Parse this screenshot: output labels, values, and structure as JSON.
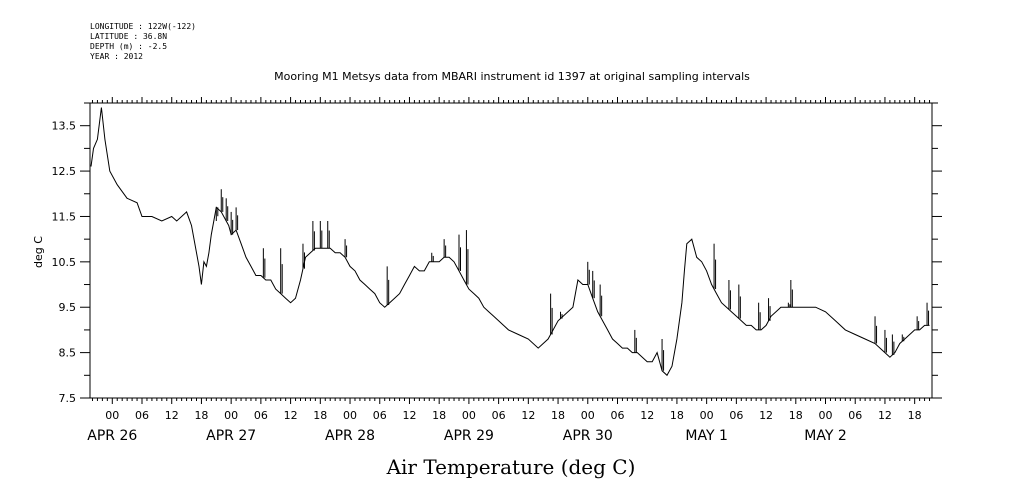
{
  "header": {
    "longitude": "LONGITUDE : 122W(-122)",
    "latitude": "LATITUDE : 36.8N",
    "depth": "DEPTH (m) : -2.5",
    "year": "YEAR : 2012"
  },
  "chart_data": {
    "type": "line",
    "title": "Mooring M1 Metsys data from MBARI instrument id 1397 at original sampling intervals",
    "xlabel": "Air Temperature (deg C)",
    "ylabel": "deg C",
    "ylim": [
      7.5,
      14.0
    ],
    "xlim_hours": [
      -4.5,
      165.5
    ],
    "ytick_labels": [
      "7.5",
      "8.5",
      "9.5",
      "10.5",
      "11.5",
      "12.5",
      "13.5"
    ],
    "xtick_hour_labels": [
      "00",
      "06",
      "12",
      "18",
      "00",
      "06",
      "12",
      "18",
      "00",
      "06",
      "12",
      "18",
      "00",
      "06",
      "12",
      "18",
      "00",
      "06",
      "12",
      "18",
      "00",
      "06",
      "12",
      "18",
      "00",
      "06",
      "12",
      "18"
    ],
    "day_labels": [
      "APR 26",
      "APR 27",
      "APR 28",
      "APR 29",
      "APR 30",
      "MAY  1",
      "MAY  2"
    ],
    "x_units": "hours since 2012-04-26 00:00",
    "series": [
      {
        "name": "",
        "x": [
          -4.3,
          -3.8,
          -3.0,
          -2.2,
          -1.5,
          -0.5,
          1.0,
          3.0,
          5.0,
          6.0,
          8.0,
          10.0,
          12.0,
          13.0,
          14.0,
          15.0,
          16.0,
          17.5,
          18.0,
          18.5,
          19.0,
          19.5,
          20.0,
          20.5,
          21.0,
          22.0,
          23.0,
          23.5,
          24.0,
          25.0,
          26.0,
          27.0,
          28.0,
          29.0,
          30.0,
          31.0,
          32.0,
          33.0,
          34.0,
          35.0,
          36.0,
          37.0,
          38.0,
          39.0,
          40.0,
          41.0,
          42.0,
          43.0,
          44.0,
          45.0,
          46.0,
          47.0,
          48.0,
          49.0,
          50.0,
          51.0,
          52.0,
          53.0,
          54.0,
          55.0,
          56.0,
          57.0,
          58.0,
          59.0,
          60.0,
          61.0,
          62.0,
          63.0,
          64.0,
          65.0,
          66.0,
          67.0,
          68.0,
          69.0,
          70.0,
          71.0,
          72.0,
          73.0,
          74.0,
          75.0,
          76.0,
          77.0,
          78.0,
          79.0,
          80.0,
          82.0,
          84.0,
          86.0,
          88.0,
          90.0,
          92.0,
          93.0,
          93.5,
          94.0,
          95.0,
          96.0,
          97.0,
          98.0,
          99.0,
          100.0,
          101.0,
          102.0,
          103.0,
          104.0,
          105.0,
          106.0,
          107.0,
          108.0,
          109.0,
          110.0,
          111.0,
          112.0,
          113.0,
          114.0,
          115.0,
          115.5,
          116.0,
          117.0,
          118.0,
          119.0,
          120.0,
          121.0,
          122.0,
          123.0,
          124.0,
          125.0,
          126.0,
          127.0,
          128.0,
          129.0,
          130.0,
          131.0,
          132.0,
          133.0,
          134.0,
          135.0,
          136.0,
          138.0,
          140.0,
          142.0,
          144.0,
          146.0,
          148.0,
          150.0,
          152.0,
          154.0,
          155.0,
          156.0,
          157.0,
          158.0,
          159.0,
          160.0,
          161.0,
          162.0,
          163.0,
          164.0,
          165.0
        ],
        "values": [
          12.6,
          13.0,
          13.2,
          13.9,
          13.2,
          12.5,
          12.2,
          11.9,
          11.8,
          11.5,
          11.5,
          11.4,
          11.5,
          11.4,
          11.5,
          11.6,
          11.3,
          10.4,
          10.0,
          10.5,
          10.4,
          10.7,
          11.1,
          11.4,
          11.7,
          11.6,
          11.4,
          11.3,
          11.1,
          11.2,
          10.9,
          10.6,
          10.4,
          10.2,
          10.2,
          10.1,
          10.1,
          9.9,
          9.8,
          9.7,
          9.6,
          9.7,
          10.1,
          10.6,
          10.7,
          10.8,
          10.8,
          10.8,
          10.8,
          10.7,
          10.7,
          10.6,
          10.4,
          10.3,
          10.1,
          10.0,
          9.9,
          9.8,
          9.6,
          9.5,
          9.6,
          9.7,
          9.8,
          10.0,
          10.2,
          10.4,
          10.3,
          10.3,
          10.5,
          10.5,
          10.5,
          10.6,
          10.6,
          10.5,
          10.3,
          10.1,
          9.9,
          9.8,
          9.7,
          9.5,
          9.4,
          9.3,
          9.2,
          9.1,
          9.0,
          8.9,
          8.8,
          8.6,
          8.8,
          9.2,
          9.4,
          9.5,
          9.8,
          10.1,
          10.0,
          10.0,
          9.7,
          9.4,
          9.2,
          9.0,
          8.8,
          8.7,
          8.6,
          8.6,
          8.5,
          8.5,
          8.4,
          8.3,
          8.3,
          8.5,
          8.1,
          8.0,
          8.2,
          8.8,
          9.6,
          10.3,
          10.9,
          11.0,
          10.6,
          10.5,
          10.3,
          10.0,
          9.8,
          9.6,
          9.5,
          9.4,
          9.3,
          9.2,
          9.1,
          9.1,
          9.0,
          9.0,
          9.1,
          9.3,
          9.4,
          9.5,
          9.5,
          9.5,
          9.5,
          9.5,
          9.4,
          9.2,
          9.0,
          8.9,
          8.8,
          8.7,
          8.6,
          8.5,
          8.4,
          8.5,
          8.7,
          8.8,
          8.9,
          9.0,
          9.0,
          9.1,
          9.1
        ]
      }
    ],
    "spikes": [
      {
        "x": 19.5,
        "value": 10.7
      },
      {
        "x": 21.0,
        "value": 11.4
      },
      {
        "x": 22.0,
        "value": 12.1
      },
      {
        "x": 23.0,
        "value": 11.9
      },
      {
        "x": 24.0,
        "value": 11.6
      },
      {
        "x": 25.0,
        "value": 11.7
      },
      {
        "x": 30.5,
        "value": 10.8
      },
      {
        "x": 34.0,
        "value": 10.8
      },
      {
        "x": 38.5,
        "value": 10.9
      },
      {
        "x": 40.5,
        "value": 11.4
      },
      {
        "x": 42.0,
        "value": 11.4
      },
      {
        "x": 43.5,
        "value": 11.4
      },
      {
        "x": 47.0,
        "value": 11.0
      },
      {
        "x": 55.5,
        "value": 10.4
      },
      {
        "x": 64.5,
        "value": 10.7
      },
      {
        "x": 67.0,
        "value": 11.0
      },
      {
        "x": 70.0,
        "value": 11.1
      },
      {
        "x": 71.5,
        "value": 11.2
      },
      {
        "x": 88.5,
        "value": 9.8
      },
      {
        "x": 90.5,
        "value": 9.4
      },
      {
        "x": 96.0,
        "value": 10.5
      },
      {
        "x": 97.0,
        "value": 10.3
      },
      {
        "x": 98.5,
        "value": 10.0
      },
      {
        "x": 105.5,
        "value": 9.0
      },
      {
        "x": 111.0,
        "value": 8.8
      },
      {
        "x": 121.5,
        "value": 10.9
      },
      {
        "x": 124.5,
        "value": 10.1
      },
      {
        "x": 126.5,
        "value": 10.0
      },
      {
        "x": 130.5,
        "value": 9.6
      },
      {
        "x": 132.5,
        "value": 9.7
      },
      {
        "x": 136.5,
        "value": 9.6
      },
      {
        "x": 137.0,
        "value": 10.1
      },
      {
        "x": 154.0,
        "value": 9.3
      },
      {
        "x": 156.0,
        "value": 9.0
      },
      {
        "x": 157.5,
        "value": 8.9
      },
      {
        "x": 159.5,
        "value": 8.9
      },
      {
        "x": 162.5,
        "value": 9.3
      },
      {
        "x": 164.5,
        "value": 9.6
      }
    ]
  }
}
